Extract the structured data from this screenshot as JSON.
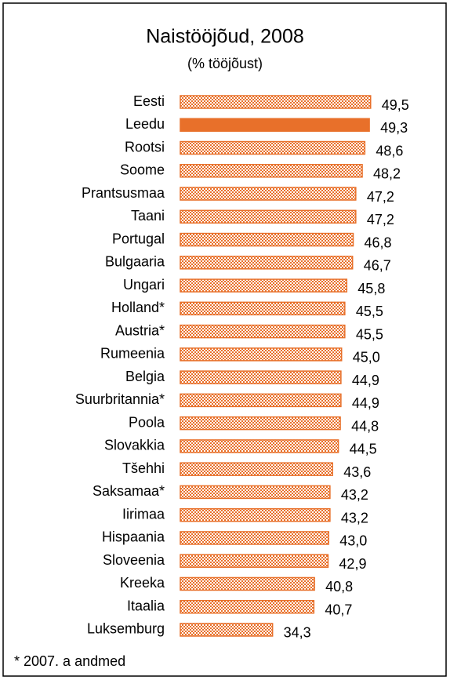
{
  "chart_data": {
    "type": "hbar",
    "title": "Naistööjõud, 2008",
    "subtitle": "(% tööjõust)",
    "categories": [
      "Eesti",
      "Leedu",
      "Rootsi",
      "Soome",
      "Prantsusmaa",
      "Taani",
      "Portugal",
      "Bulgaaria",
      "Ungari",
      "Holland*",
      "Austria*",
      "Rumeenia",
      "Belgia",
      "Suurbritannia*",
      "Poola",
      "Slovakkia",
      "Tšehhi",
      "Saksamaa*",
      "Iirimaa",
      "Hispaania",
      "Sloveenia",
      "Kreeka",
      "Itaalia",
      "Luksemburg"
    ],
    "values": [
      49.5,
      49.3,
      48.6,
      48.2,
      47.2,
      47.2,
      46.8,
      46.7,
      45.8,
      45.5,
      45.5,
      45.0,
      44.9,
      44.9,
      44.8,
      44.5,
      43.6,
      43.2,
      43.2,
      43.0,
      42.9,
      40.8,
      40.7,
      34.3
    ],
    "value_labels": [
      "49,5",
      "49,3",
      "48,6",
      "48,2",
      "47,2",
      "47,2",
      "46,8",
      "46,7",
      "45,8",
      "45,5",
      "45,5",
      "45,0",
      "44,9",
      "44,9",
      "44,8",
      "44,5",
      "43,6",
      "43,2",
      "43,2",
      "43,0",
      "42,9",
      "40,8",
      "40,7",
      "34,3"
    ],
    "color": "#e8702a",
    "highlight_category": "Leedu",
    "xlim": [
      20,
      55
    ],
    "footnote": "* 2007. a andmed"
  }
}
